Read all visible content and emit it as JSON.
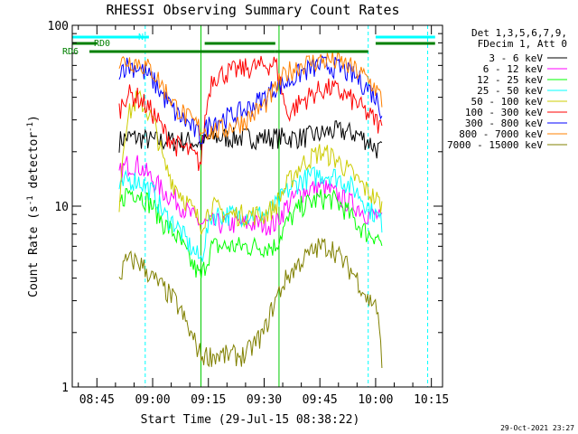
{
  "chart_data": {
    "type": "line",
    "title": "RHESSI Observing Summary Count Rates",
    "xlabel": "Start Time (29-Jul-15 08:38:22)",
    "ylabel": "Count Rate (s⁻¹ detector⁻¹)",
    "ylabel_parts": {
      "main": "Count Rate (s",
      "exp1": "-1",
      "mid": " detector",
      "exp2": "-1",
      "end": ")"
    },
    "y_scale": "log",
    "ylim": [
      1,
      100
    ],
    "y_ticks": [
      "1",
      "10",
      "100"
    ],
    "xlim": [
      "08:38:22",
      "10:18:00"
    ],
    "x_ticks": [
      "08:45",
      "09:00",
      "09:15",
      "09:30",
      "09:45",
      "10:00",
      "10:15"
    ],
    "legend_position": "right",
    "legend_header": [
      "Det 1,3,5,6,7,9,",
      "FDecim 1, Att 0"
    ],
    "timestamp": "29-Oct-2021 23:27",
    "flag_labels": {
      "n": "N",
      "rd0": "RD0",
      "rd6": "RD6"
    },
    "flags": [
      {
        "label": "N",
        "color": "#00ffff",
        "intervals": [
          [
            "08:38:22",
            "08:59:00"
          ],
          [
            "10:00:00",
            "10:16:00"
          ]
        ]
      },
      {
        "label": "RD0",
        "color": "#008000",
        "intervals": [
          [
            "08:38:22",
            "08:45:00"
          ],
          [
            "09:14:00",
            "09:33:00"
          ],
          [
            "10:00:00",
            "10:16:00"
          ]
        ]
      },
      {
        "label": "RD6",
        "color": "#008000",
        "intervals": [
          [
            "08:43:00",
            "09:33:00"
          ],
          [
            "09:33:00",
            "09:58:00"
          ]
        ]
      }
    ],
    "night_boundaries_cyan": [
      "08:58:00",
      "09:58:00",
      "10:14:00"
    ],
    "saa_boundaries_green": [
      "09:13:00",
      "09:34:00"
    ],
    "series": [
      {
        "name": "3 - 6 keV",
        "color": "#000000",
        "x": [
          "08:51",
          "08:53",
          "08:56",
          "09:00",
          "09:03",
          "09:06",
          "09:10",
          "09:13",
          "09:16",
          "09:20",
          "09:25",
          "09:30",
          "09:33",
          "09:36",
          "09:40",
          "09:45",
          "09:48",
          "09:51",
          "09:55",
          "09:58",
          "10:00",
          "10:02"
        ],
        "y": [
          23,
          24,
          24,
          23,
          23,
          23,
          23,
          22,
          24,
          24,
          24,
          24,
          24,
          24,
          24,
          25,
          26,
          26,
          25,
          23,
          21,
          20
        ]
      },
      {
        "name": "6 - 12 keV",
        "color": "#ff00ff",
        "x": [
          "08:51",
          "08:53",
          "08:56",
          "09:00",
          "09:03",
          "09:06",
          "09:10",
          "09:13",
          "09:16",
          "09:20",
          "09:25",
          "09:30",
          "09:33",
          "09:36",
          "09:40",
          "09:45",
          "09:48",
          "09:51",
          "09:55",
          "09:58",
          "10:00",
          "10:02"
        ],
        "y": [
          15,
          17,
          17,
          14,
          12,
          11,
          9,
          8,
          8,
          8,
          8,
          8,
          8,
          10,
          12,
          13,
          12,
          11,
          10,
          9,
          9,
          8
        ]
      },
      {
        "name": "12 - 25 keV",
        "color": "#00ff00",
        "x": [
          "08:51",
          "08:53",
          "08:56",
          "09:00",
          "09:03",
          "09:06",
          "09:10",
          "09:13",
          "09:16",
          "09:20",
          "09:25",
          "09:30",
          "09:33",
          "09:36",
          "09:40",
          "09:45",
          "09:48",
          "09:51",
          "09:55",
          "09:58",
          "10:00",
          "10:02"
        ],
        "y": [
          10,
          12,
          12,
          10,
          8,
          7,
          5,
          4,
          6,
          6,
          6,
          6,
          6,
          8,
          10,
          11,
          11,
          10,
          8,
          7,
          7,
          6
        ]
      },
      {
        "name": "25 - 50 keV",
        "color": "#00ffff",
        "x": [
          "08:51",
          "08:53",
          "08:56",
          "09:00",
          "09:03",
          "09:06",
          "09:10",
          "09:13",
          "09:16",
          "09:20",
          "09:25",
          "09:30",
          "09:33",
          "09:36",
          "09:40",
          "09:45",
          "09:48",
          "09:51",
          "09:55",
          "09:58",
          "10:00",
          "10:02"
        ],
        "y": [
          12,
          14,
          14,
          12,
          9,
          8,
          6,
          5,
          9,
          9,
          9,
          9,
          10,
          12,
          14,
          15,
          15,
          14,
          12,
          10,
          9,
          8
        ]
      },
      {
        "name": "50 - 100 keV",
        "color": "#cccc00",
        "x": [
          "08:51",
          "08:53",
          "08:56",
          "09:00",
          "09:03",
          "09:06",
          "09:10",
          "09:13",
          "09:16",
          "09:20",
          "09:25",
          "09:30",
          "09:33",
          "09:36",
          "09:40",
          "09:45",
          "09:48",
          "09:51",
          "09:55",
          "09:58",
          "10:00",
          "10:02"
        ],
        "y": [
          10,
          30,
          40,
          30,
          17,
          13,
          10,
          8,
          10,
          9,
          9,
          9,
          10,
          13,
          17,
          20,
          19,
          17,
          14,
          12,
          11,
          10
        ]
      },
      {
        "name": "100 - 300 keV",
        "color": "#ff0000",
        "x": [
          "08:51",
          "08:53",
          "08:56",
          "09:00",
          "09:03",
          "09:06",
          "09:10",
          "09:13",
          "09:16",
          "09:20",
          "09:25",
          "09:30",
          "09:33",
          "09:36",
          "09:40",
          "09:45",
          "09:48",
          "09:51",
          "09:55",
          "09:58",
          "10:00",
          "10:02"
        ],
        "y": [
          34,
          42,
          40,
          33,
          26,
          22,
          20,
          17,
          52,
          55,
          58,
          60,
          62,
          32,
          38,
          44,
          45,
          42,
          37,
          32,
          30,
          26
        ]
      },
      {
        "name": "300 - 800 keV",
        "color": "#0000ff",
        "x": [
          "08:51",
          "08:53",
          "08:56",
          "09:00",
          "09:03",
          "09:06",
          "09:10",
          "09:13",
          "09:16",
          "09:20",
          "09:25",
          "09:30",
          "09:33",
          "09:36",
          "09:40",
          "09:45",
          "09:48",
          "09:51",
          "09:55",
          "09:58",
          "10:00",
          "10:02"
        ],
        "y": [
          58,
          60,
          59,
          50,
          40,
          33,
          28,
          24,
          30,
          31,
          34,
          40,
          46,
          48,
          55,
          60,
          60,
          57,
          51,
          45,
          40,
          33
        ]
      },
      {
        "name": "800 - 7000 keV",
        "color": "#ff8000",
        "x": [
          "08:51",
          "08:53",
          "08:56",
          "09:00",
          "09:03",
          "09:06",
          "09:10",
          "09:13",
          "09:16",
          "09:20",
          "09:25",
          "09:30",
          "09:33",
          "09:36",
          "09:40",
          "09:45",
          "09:48",
          "09:51",
          "09:55",
          "09:58",
          "10:00",
          "10:02"
        ],
        "y": [
          62,
          64,
          63,
          56,
          45,
          36,
          30,
          27,
          26,
          27,
          30,
          36,
          44,
          55,
          61,
          64,
          64,
          62,
          56,
          50,
          45,
          37
        ]
      },
      {
        "name": "7000 - 15000 keV",
        "color": "#808000",
        "x": [
          "08:51",
          "08:53",
          "08:56",
          "09:00",
          "09:03",
          "09:06",
          "09:10",
          "09:13",
          "09:16",
          "09:20",
          "09:25",
          "09:30",
          "09:33",
          "09:36",
          "09:40",
          "09:45",
          "09:48",
          "09:51",
          "09:55",
          "09:58",
          "10:00",
          "10:02"
        ],
        "y": [
          4,
          5,
          5,
          4,
          3.5,
          3,
          2,
          1.5,
          1.5,
          1.5,
          1.5,
          2,
          3,
          4,
          5,
          6,
          6,
          5,
          4,
          3,
          3,
          1
        ]
      }
    ]
  }
}
